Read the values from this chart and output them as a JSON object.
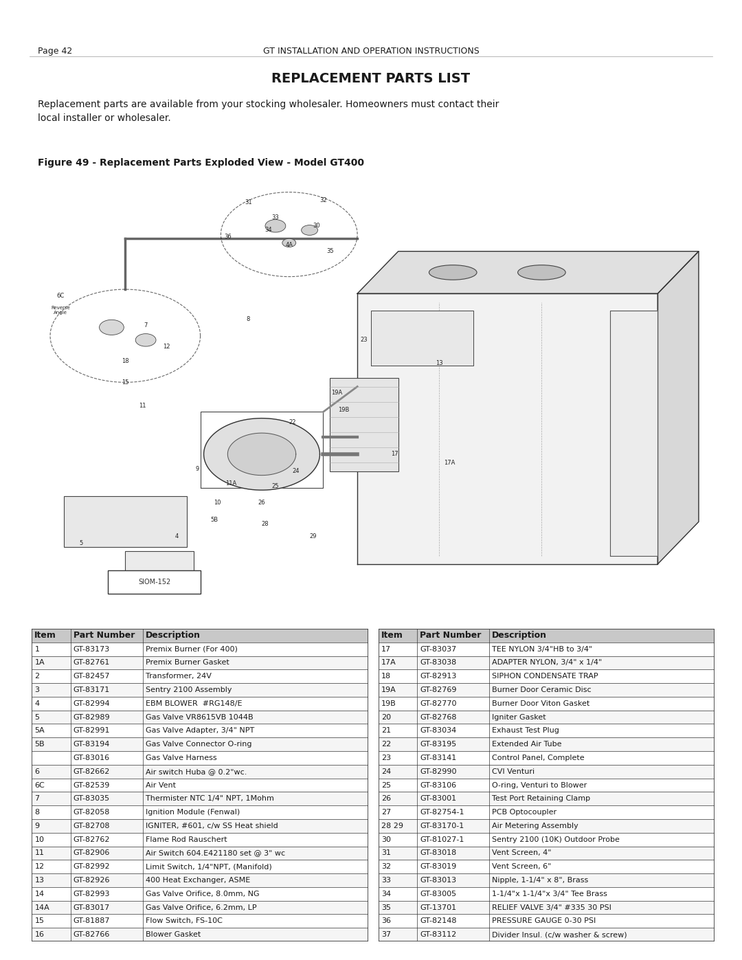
{
  "header_left": "Page 42",
  "header_center": "GT INSTALLATION AND OPERATION INSTRUCTIONS",
  "title": "REPLACEMENT PARTS LIST",
  "subtitle": "Replacement parts are available from your stocking wholesaler. Homeowners must contact their\nlocal installer or wholesaler.",
  "figure_caption": "Figure 49 - Replacement Parts Exploded View - Model GT400",
  "siom": "SIOM-152",
  "left_table_headers": [
    "Item",
    "Part Number",
    "Description"
  ],
  "right_table_headers": [
    "Item",
    "Part Number",
    "Description"
  ],
  "left_table_rows": [
    [
      "1",
      "GT-83173",
      "Premix Burner (For 400)"
    ],
    [
      "1A",
      "GT-82761",
      "Premix Burner Gasket"
    ],
    [
      "2",
      "GT-82457",
      "Transformer, 24V"
    ],
    [
      "3",
      "GT-83171",
      "Sentry 2100 Assembly"
    ],
    [
      "4",
      "GT-82994",
      "EBM BLOWER  #RG148/E"
    ],
    [
      "5",
      "GT-82989",
      "Gas Valve VR8615VB 1044B"
    ],
    [
      "5A",
      "GT-82991",
      "Gas Valve Adapter, 3/4\" NPT"
    ],
    [
      "5B",
      "GT-83194",
      "Gas Valve Connector O-ring"
    ],
    [
      "",
      "GT-83016",
      "Gas Valve Harness"
    ],
    [
      "6",
      "GT-82662",
      "Air switch Huba @ 0.2\"wc."
    ],
    [
      "6C",
      "GT-82539",
      "Air Vent"
    ],
    [
      "7",
      "GT-83035",
      "Thermister NTC 1/4\" NPT, 1Mohm"
    ],
    [
      "8",
      "GT-82058",
      "Ignition Module (Fenwal)"
    ],
    [
      "9",
      "GT-82708",
      "IGNITER, #601, c/w SS Heat shield"
    ],
    [
      "10",
      "GT-82762",
      "Flame Rod Rauschert"
    ],
    [
      "11",
      "GT-82906",
      "Air Switch 604.E421180 set @ 3\" wc"
    ],
    [
      "12",
      "GT-82992",
      "Limit Switch, 1/4\"NPT, (Manifold)"
    ],
    [
      "13",
      "GT-82926",
      "400 Heat Exchanger, ASME"
    ],
    [
      "14",
      "GT-82993",
      "Gas Valve Orifice, 8.0mm, NG"
    ],
    [
      "14A",
      "GT-83017",
      "Gas Valve Orifice, 6.2mm, LP"
    ],
    [
      "15",
      "GT-81887",
      "Flow Switch, FS-10C"
    ],
    [
      "16",
      "GT-82766",
      "Blower Gasket"
    ]
  ],
  "right_table_rows": [
    [
      "17",
      "GT-83037",
      "TEE NYLON 3/4\"HB to 3/4\""
    ],
    [
      "17A",
      "GT-83038",
      "ADAPTER NYLON, 3/4\" x 1/4\""
    ],
    [
      "18",
      "GT-82913",
      "SIPHON CONDENSATE TRAP"
    ],
    [
      "19A",
      "GT-82769",
      "Burner Door Ceramic Disc"
    ],
    [
      "19B",
      "GT-82770",
      "Burner Door Viton Gasket"
    ],
    [
      "20",
      "GT-82768",
      "Igniter Gasket"
    ],
    [
      "21",
      "GT-83034",
      "Exhaust Test Plug"
    ],
    [
      "22",
      "GT-83195",
      "Extended Air Tube"
    ],
    [
      "23",
      "GT-83141",
      "Control Panel, Complete"
    ],
    [
      "24",
      "GT-82990",
      "CVI Venturi"
    ],
    [
      "25",
      "GT-83106",
      "O-ring, Venturi to Blower"
    ],
    [
      "26",
      "GT-83001",
      "Test Port Retaining Clamp"
    ],
    [
      "27",
      "GT-82754-1",
      "PCB Optocoupler"
    ],
    [
      "28 29",
      "GT-83170-1",
      "Air Metering Assembly"
    ],
    [
      "30",
      "GT-81027-1",
      "Sentry 2100 (10K) Outdoor Probe"
    ],
    [
      "31",
      "GT-83018",
      "Vent Screen, 4\""
    ],
    [
      "32",
      "GT-83019",
      "Vent Screen, 6\""
    ],
    [
      "33",
      "GT-83013",
      "Nipple, 1-1/4\" x 8\", Brass"
    ],
    [
      "34",
      "GT-83005",
      "1-1/4\"x 1-1/4\"x 3/4\" Tee Brass"
    ],
    [
      "35",
      "GT-13701",
      "RELIEF VALVE 3/4\" #335 30 PSI"
    ],
    [
      "36",
      "GT-82148",
      "PRESSURE GAUGE 0-30 PSI"
    ],
    [
      "37",
      "GT-83112",
      "Divider Insul. (c/w washer & screw)"
    ]
  ],
  "bg_color": "#ffffff",
  "text_color": "#1a1a1a",
  "table_header_bg": "#c8c8c8",
  "table_border_color": "#333333",
  "header_font_size": 9,
  "title_font_size": 14,
  "subtitle_font_size": 10,
  "caption_font_size": 10,
  "table_font_size": 8.0,
  "table_header_font_size": 9
}
